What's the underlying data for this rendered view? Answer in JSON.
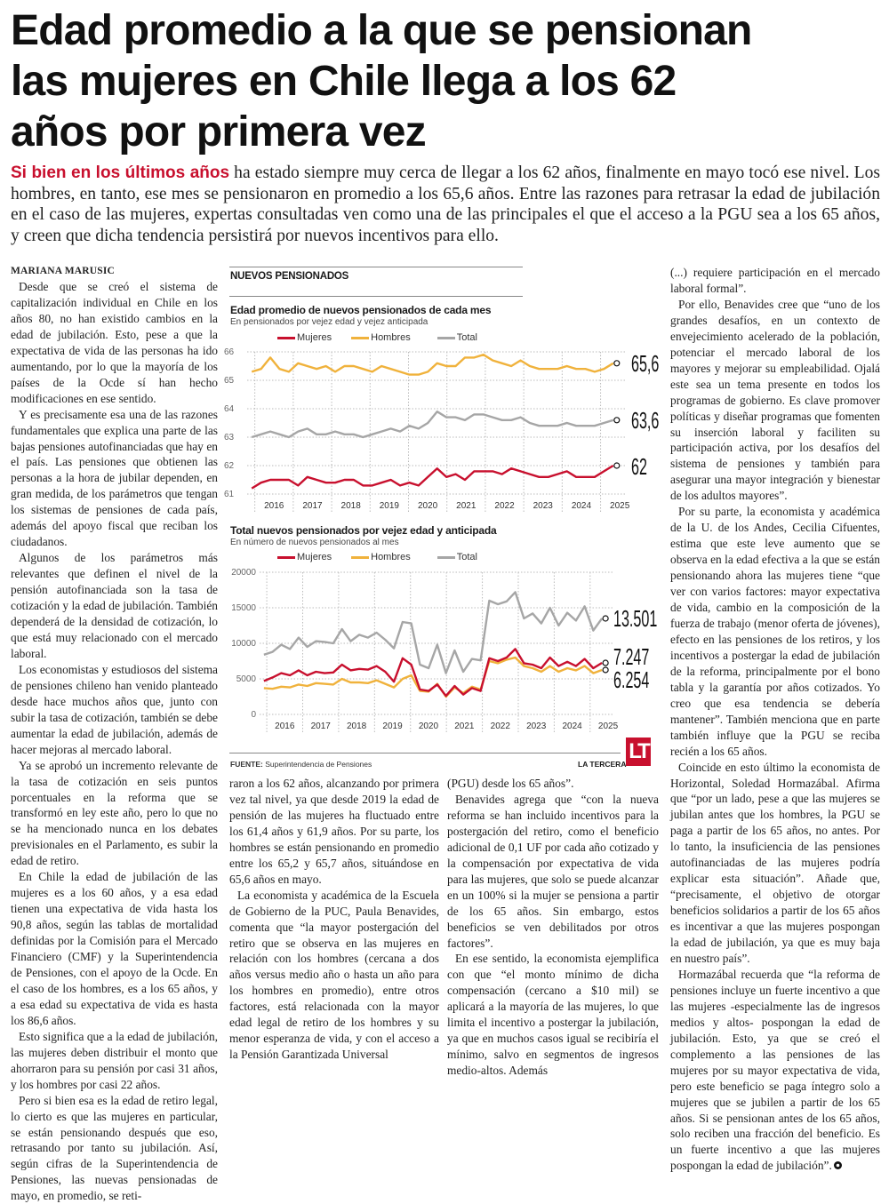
{
  "headline": {
    "lines": [
      "Edad promedio a la que se pensionan",
      "las mujeres en Chile llega a los 62",
      "años por primera vez"
    ]
  },
  "dek": {
    "lead": "Si bien en los últimos años",
    "text": " ha estado siempre muy cerca de llegar a los 62 años, finalmente en mayo tocó ese nivel. Los hombres, en tanto, ese mes se pensionaron en promedio a los 65,6 años. Entre las razones para retrasar la edad de jubilación en el caso de las mujeres, expertas consultadas ven como una de las principales el que el acceso a la PGU sea a los 65 años, y creen que dicha tendencia persistirá por nuevos incentivos para ello."
  },
  "byline": "MARIANA MARUSIC",
  "columns": [
    [
      "Desde que se creó el sistema de capitalización individual en Chile en los años 80, no han existido cambios en la edad de jubilación. Esto, pese a que la expectativa de vida de las personas ha ido aumentando, por lo que la mayoría de los países de la Ocde sí han hecho modificaciones en ese sentido.",
      "Y es precisamente esa una de las razones fundamentales que explica una parte de las bajas pensiones autofinanciadas que hay en el país. Las pensiones que obtienen las personas a la hora de jubilar dependen, en gran medida, de los parámetros que tengan los sistemas de pensiones de cada país, además del apoyo fiscal que reciban los ciudadanos.",
      "Algunos de los parámetros más relevantes que definen el nivel de la pensión autofinanciada son la tasa de cotización y la edad de jubilación. También dependerá de la densidad de cotización, lo que está muy relacionado con el mercado laboral.",
      "Los economistas y estudiosos del sistema de pensiones chileno han venido planteado desde hace muchos años que, junto con subir la tasa de cotización, también se debe aumentar la edad de jubilación, además de hacer mejoras al mercado laboral.",
      "Ya se aprobó un incremento relevante de la tasa de cotización en seis puntos porcentuales en la reforma que se transformó en ley este año, pero lo que no se ha mencionado nunca en los debates previsionales en el Parlamento, es subir la edad de retiro.",
      "En Chile la edad de jubilación de las mujeres es a los 60 años, y a esa edad tienen una expectativa de vida hasta los 90,8 años, según las tablas de mortalidad definidas por la Comisión para el Mercado Financiero (CMF) y la Superintendencia de Pensiones, con el apoyo de la Ocde. En el caso de los hombres, es a los 65 años, y a esa edad su expectativa de vida es hasta los 86,6 años.",
      "Esto significa que a la edad de jubilación, las mujeres deben distribuir el monto que ahorraron para su pensión por casi 31 años, y los hombres por casi 22 años.",
      "Pero si bien esa es la edad de retiro legal, lo cierto es que las mujeres en particular, se están pensionando después que eso, retrasando por tanto su jubilación. Así, según cifras de la Superintendencia de Pensiones, las nuevas pensionadas de mayo, en promedio, se reti-"
    ],
    [
      "raron a los 62 años, alcanzando por primera vez tal nivel, ya que desde 2019 la edad de pensión de las mujeres ha fluctuado entre los 61,4 años y 61,9 años. Por su parte, los hombres se están pensionando en promedio entre los 65,2 y 65,7 años, situándose en 65,6 años en mayo.",
      "La economista y académica de la Escuela de Gobierno de la PUC, Paula Benavides, comenta que “la mayor postergación del retiro que se observa en las mujeres en relación con los hombres (cercana a dos años versus medio año o hasta un año para los hombres en promedio), entre otros factores, está relacionada con la mayor edad legal de retiro de los hombres y su menor esperanza de vida, y con el acceso a la Pensión Garantizada Universal"
    ],
    [
      "(PGU) desde los 65 años”.",
      "Benavides agrega que “con la nueva reforma se han incluido incentivos para la postergación del retiro, como el beneficio adicional de 0,1 UF por cada año cotizado y la compensación por expectativa de vida para las mujeres, que solo se puede alcanzar en un 100% si la mujer se pensiona a partir de los 65 años. Sin embargo, estos beneficios se ven debilitados por otros factores”.",
      "En ese sentido, la economista ejemplifica con que “el monto mínimo de dicha compensación (cercano a $10 mil) se aplicará a la mayoría de las mujeres, lo que limita el incentivo a postergar la jubilación, ya que en muchos casos igual se recibiría el mínimo, salvo en segmentos de ingresos medio-altos. Además"
    ],
    [
      "(...) requiere participación en el mercado laboral formal”.",
      "Por ello, Benavides cree que “uno de los grandes desafíos, en un contexto de envejecimiento acelerado de la población, potenciar el mercado laboral de los mayores y mejorar su empleabilidad. Ojalá este sea un tema presente en todos los programas de gobierno. Es clave promover políticas y diseñar programas que fomenten su inserción laboral y faciliten su participación activa, por los desafíos del sistema de pensiones y también para asegurar una mayor integración y bienestar de los adultos mayores”.",
      "Por su parte, la economista y académica de la U. de los Andes, Cecilia Cifuentes, estima que este leve aumento que se observa en la edad efectiva a la que se están pensionando ahora las mujeres tiene “que ver con varios factores: mayor expectativa de vida, cambio en la composición de la fuerza de trabajo (menor oferta de jóvenes), efecto en las pensiones de los retiros, y los incentivos a postergar la edad de jubilación de la reforma, principalmente por el bono tabla y la garantía por años cotizados. Yo creo que esa tendencia se debería mantener”. También menciona que en parte también influye que la PGU se reciba recién a los 65 años.",
      "Coincide en esto último la economista de Horizontal, Soledad Hormazábal. Afirma que “por un lado, pese a que las mujeres se jubilan antes que los hombres, la PGU se paga a partir de los 65 años, no antes. Por lo tanto, la insuficiencia de las pensiones autofinanciadas de las mujeres podría explicar esta situación”. Añade que, “precisamente, el objetivo de otorgar beneficios solidarios a partir de los 65 años es incentivar a que las mujeres pospongan la edad de jubilación, ya que es muy baja en nuestro país”.",
      "Hormazábal recuerda que “la reforma de pensiones incluye un fuerte incentivo a que las mujeres -especialmente las de ingresos medios y altos- pospongan la edad de jubilación. Esto, ya que se creó el complemento a las pensiones de las mujeres por su mayor expectativa de vida, pero este beneficio se paga íntegro solo a mujeres que se jubilen a partir de los 65 años. Si se pensionan antes de los 65 años, solo reciben una fracción del beneficio. Es un fuerte incentivo a que las mujeres pospongan la edad de jubilación”."
    ]
  ],
  "graphic": {
    "kicker": "NUEVOS PENSIONADOS",
    "source_label": "FUENTE:",
    "source": "Superintendencia de Pensiones",
    "brand": "LA TERCERA",
    "logo": "LT"
  },
  "colors": {
    "mujeres": "#c8102e",
    "hombres": "#f0b23c",
    "total": "#a6a6a6",
    "accent": "#c8102e"
  },
  "chart_data": [
    {
      "type": "line",
      "title": "Edad promedio de nuevos pensionados de cada mes",
      "subtitle": "En pensionados por vejez edad y vejez anticipada",
      "xlabel": "",
      "ylabel": "",
      "ylim": [
        61,
        66
      ],
      "yticks": [
        "61",
        "62",
        "63",
        "64",
        "65",
        "66"
      ],
      "years": [
        "2016",
        "2017",
        "2018",
        "2019",
        "2020",
        "2021",
        "2022",
        "2023",
        "2024",
        "2025"
      ],
      "x_range": [
        2015.8,
        2025.45
      ],
      "grid": true,
      "legend": "top",
      "series": [
        {
          "name": "Mujeres",
          "key": "mujeres",
          "end_label": "62",
          "values": [
            61.2,
            61.4,
            61.5,
            61.5,
            61.5,
            61.3,
            61.6,
            61.5,
            61.4,
            61.4,
            61.5,
            61.5,
            61.3,
            61.3,
            61.4,
            61.5,
            61.3,
            61.4,
            61.3,
            61.6,
            61.9,
            61.6,
            61.7,
            61.5,
            61.8,
            61.8,
            61.8,
            61.7,
            61.9,
            61.8,
            61.7,
            61.6,
            61.6,
            61.7,
            61.8,
            61.6,
            61.6,
            61.6,
            61.8,
            62.0
          ]
        },
        {
          "name": "Hombres",
          "key": "hombres",
          "end_label": "65,6",
          "values": [
            65.3,
            65.4,
            65.8,
            65.4,
            65.3,
            65.6,
            65.5,
            65.4,
            65.5,
            65.3,
            65.5,
            65.5,
            65.4,
            65.3,
            65.5,
            65.4,
            65.3,
            65.2,
            65.2,
            65.3,
            65.6,
            65.5,
            65.5,
            65.8,
            65.8,
            65.9,
            65.7,
            65.6,
            65.5,
            65.7,
            65.5,
            65.4,
            65.4,
            65.4,
            65.5,
            65.4,
            65.4,
            65.3,
            65.4,
            65.6
          ]
        },
        {
          "name": "Total",
          "key": "total",
          "end_label": "63,6",
          "values": [
            63.0,
            63.1,
            63.2,
            63.1,
            63.0,
            63.2,
            63.3,
            63.1,
            63.1,
            63.2,
            63.1,
            63.1,
            63.0,
            63.1,
            63.2,
            63.3,
            63.2,
            63.4,
            63.3,
            63.5,
            63.9,
            63.7,
            63.7,
            63.6,
            63.8,
            63.8,
            63.7,
            63.6,
            63.6,
            63.7,
            63.5,
            63.4,
            63.4,
            63.4,
            63.5,
            63.4,
            63.4,
            63.4,
            63.5,
            63.6
          ]
        }
      ]
    },
    {
      "type": "line",
      "title": "Total nuevos pensionados por vejez edad y anticipada",
      "subtitle": "En número de nuevos pensionados al mes",
      "xlabel": "",
      "ylabel": "",
      "ylim": [
        0,
        20000
      ],
      "yticks": [
        "0",
        "5000",
        "10000",
        "15000",
        "20000"
      ],
      "years": [
        "2016",
        "2017",
        "2018",
        "2019",
        "2020",
        "2021",
        "2022",
        "2023",
        "2024",
        "2025"
      ],
      "x_range": [
        2015.8,
        2025.45
      ],
      "grid": true,
      "legend": "top",
      "series": [
        {
          "name": "Mujeres",
          "key": "mujeres",
          "end_label": "7.247",
          "values": [
            4700,
            5200,
            5800,
            5500,
            6200,
            5500,
            6000,
            5800,
            5900,
            7000,
            6200,
            6400,
            6300,
            6800,
            6000,
            4600,
            7900,
            7000,
            3500,
            3300,
            4200,
            2600,
            4000,
            2800,
            3700,
            3300,
            7900,
            7500,
            8000,
            9200,
            7200,
            7000,
            6500,
            8000,
            6800,
            7400,
            6800,
            7800,
            6500,
            7247
          ]
        },
        {
          "name": "Hombres",
          "key": "hombres",
          "end_label": "6.254",
          "values": [
            3700,
            3600,
            3900,
            3800,
            4200,
            4000,
            4400,
            4300,
            4200,
            5000,
            4500,
            4500,
            4400,
            4800,
            4300,
            3800,
            5000,
            5500,
            3300,
            3200,
            4300,
            2500,
            3800,
            3000,
            3900,
            3500,
            7500,
            7200,
            7700,
            8000,
            6800,
            6500,
            6000,
            6800,
            6000,
            6500,
            6200,
            6800,
            5800,
            6254
          ]
        },
        {
          "name": "Total",
          "key": "total",
          "end_label": "13.501",
          "values": [
            8400,
            8800,
            9800,
            9200,
            10800,
            9500,
            10300,
            10200,
            10000,
            12000,
            10300,
            11200,
            10800,
            11500,
            10500,
            9300,
            13000,
            12800,
            7000,
            6500,
            9800,
            5800,
            9000,
            6000,
            7800,
            7600,
            16000,
            15500,
            15900,
            17200,
            13500,
            14200,
            12800,
            15000,
            12500,
            14300,
            13200,
            15200,
            11800,
            13501
          ]
        }
      ]
    }
  ]
}
